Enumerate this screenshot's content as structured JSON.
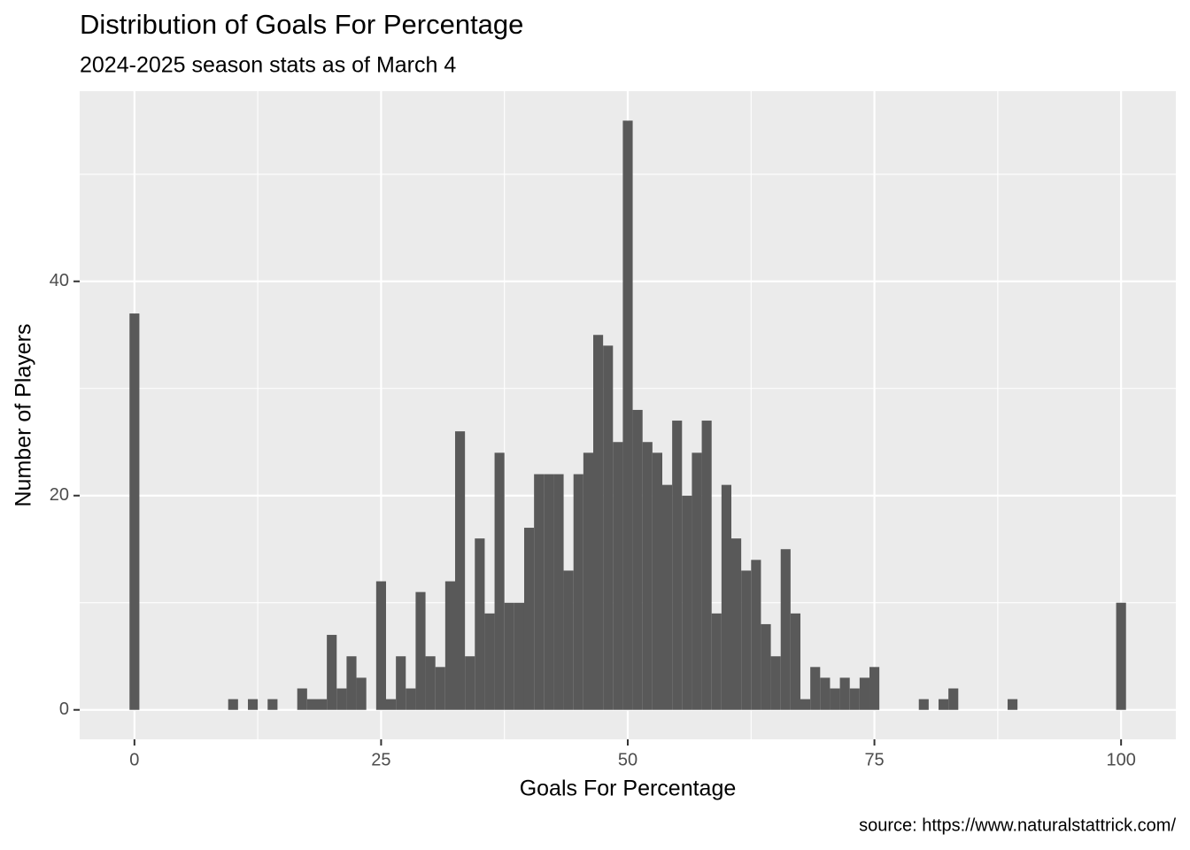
{
  "chart_data": {
    "type": "histogram",
    "title": "Distribution of Goals For Percentage",
    "subtitle": "2024-2025 season stats as of March 4",
    "x_label": "Goals For Percentage",
    "y_label": "Number of Players",
    "caption": "source: https://www.naturalstattrick.com/",
    "color": "#595959",
    "bins": [
      -0.5,
      0.5,
      1.5,
      2.5,
      3.5,
      4.5,
      5.5,
      6.5,
      7.5,
      8.5,
      9.5,
      10.5,
      11.5,
      12.5,
      13.5,
      14.5,
      15.5,
      16.5,
      17.5,
      18.5,
      19.5,
      20.5,
      21.5,
      22.5,
      23.5,
      24.5,
      25.5,
      26.5,
      27.5,
      28.5,
      29.5,
      30.5,
      31.5,
      32.5,
      33.5,
      34.5,
      35.5,
      36.5,
      37.5,
      38.5,
      39.5,
      40.5,
      41.5,
      42.5,
      43.5,
      44.5,
      45.5,
      46.5,
      47.5,
      48.5,
      49.5,
      50.5,
      51.5,
      52.5,
      53.5,
      54.5,
      55.5,
      56.5,
      57.5,
      58.5,
      59.5,
      60.5,
      61.5,
      62.5,
      63.5,
      64.5,
      65.5,
      66.5,
      67.5,
      68.5,
      69.5,
      70.5,
      71.5,
      72.5,
      73.5,
      74.5,
      75.5,
      76.5,
      77.5,
      78.5,
      79.5,
      80.5,
      81.5,
      82.5,
      83.5,
      84.5,
      85.5,
      86.5,
      87.5,
      88.5,
      89.5,
      90.5,
      91.5,
      92.5,
      93.5,
      94.5,
      95.5,
      96.5,
      97.5,
      98.5,
      99.5,
      100.5
    ],
    "values": [
      37,
      0,
      0,
      0,
      0,
      0,
      0,
      0,
      0,
      0,
      1,
      0,
      1,
      0,
      1,
      0,
      0,
      2,
      1,
      1,
      7,
      2,
      5,
      3,
      0,
      12,
      1,
      5,
      2,
      11,
      5,
      4,
      12,
      26,
      5,
      16,
      9,
      24,
      10,
      10,
      17,
      22,
      22,
      22,
      13,
      22,
      24,
      35,
      34,
      25,
      55,
      28,
      25,
      24,
      21,
      27,
      20,
      24,
      27,
      9,
      21,
      16,
      13,
      14,
      8,
      5,
      15,
      9,
      1,
      4,
      3,
      2,
      3,
      2,
      3,
      4,
      0,
      0,
      0,
      0,
      1,
      0,
      1,
      2,
      0,
      0,
      0,
      0,
      0,
      1,
      0,
      0,
      0,
      0,
      0,
      0,
      0,
      0,
      0,
      0,
      10
    ],
    "xlim": [
      -5.55,
      105.55
    ],
    "ylim": [
      -2.75,
      57.75
    ],
    "xticks": [
      0,
      25,
      50,
      75,
      100
    ],
    "yticks": [
      0,
      20,
      40
    ],
    "xminor": [
      12.5,
      37.5,
      62.5,
      87.5
    ],
    "yminor": [
      10,
      30,
      50
    ],
    "grid": true
  }
}
